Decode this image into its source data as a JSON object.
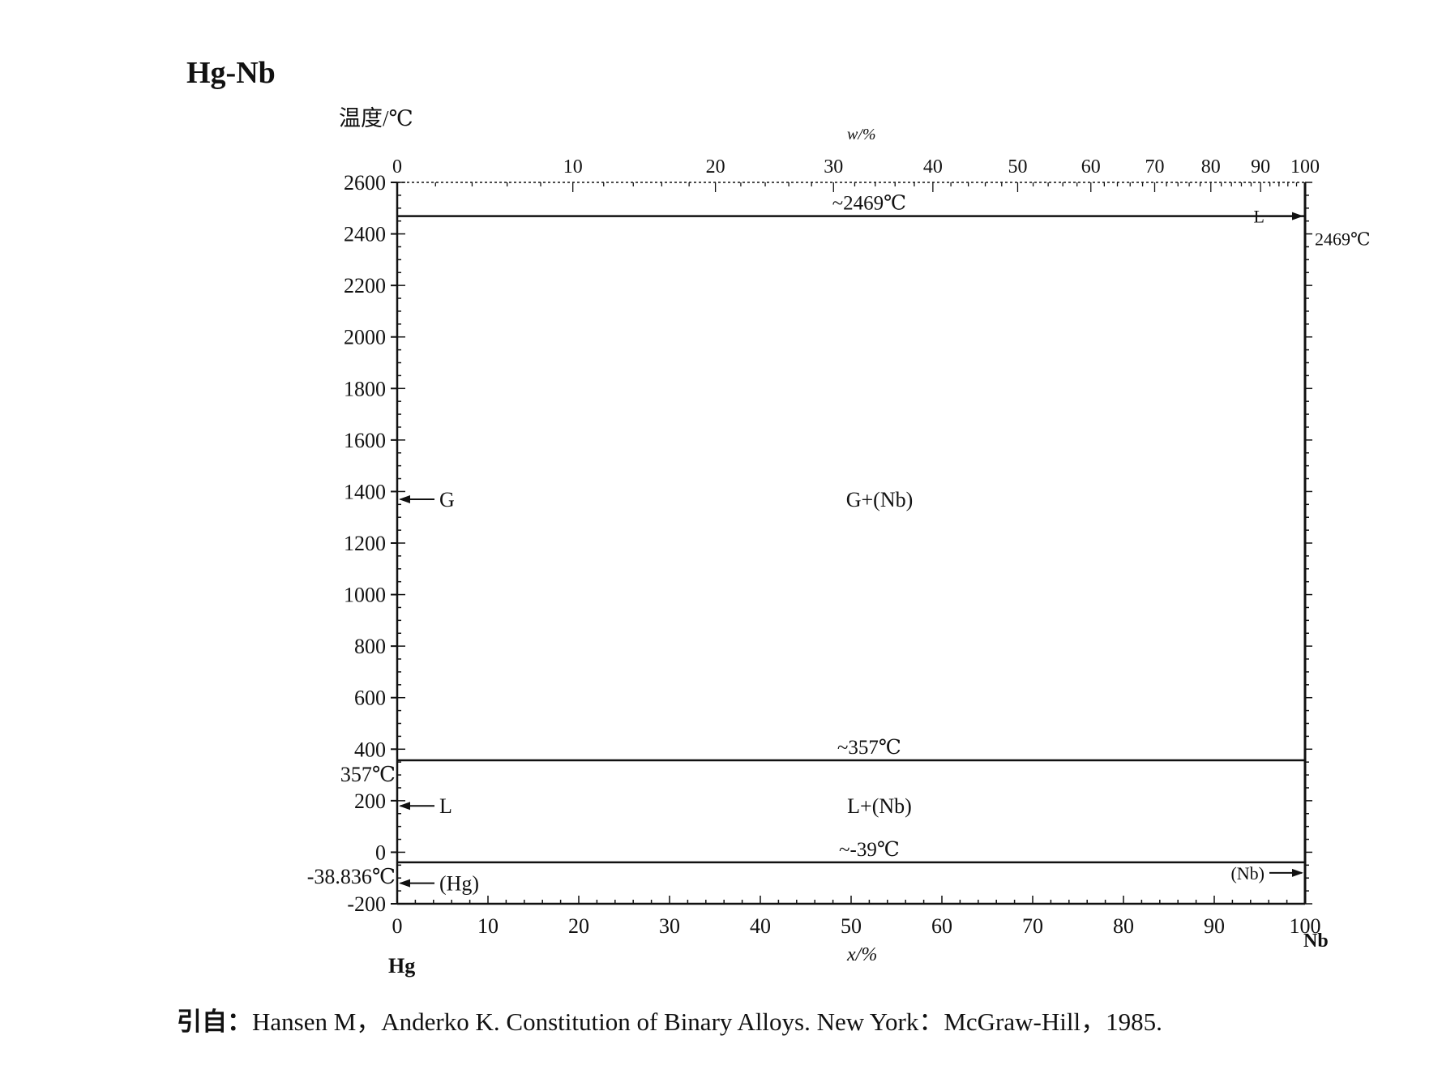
{
  "chart_data": {
    "type": "line",
    "title": "Hg-Nb",
    "ylabel": "温度/℃",
    "xlabel_bottom": "x/%",
    "xlabel_top": "w/%",
    "ylim": [
      -200,
      2600
    ],
    "xlim": [
      0,
      100
    ],
    "y_ticks": [
      "2600",
      "2400",
      "2200",
      "2000",
      "1800",
      "1600",
      "1400",
      "1200",
      "1000",
      "800",
      "600",
      "400",
      "200",
      "0",
      "-200"
    ],
    "y_tick_values": [
      2600,
      2400,
      2200,
      2000,
      1800,
      1600,
      1400,
      1200,
      1000,
      800,
      600,
      400,
      200,
      0,
      -200
    ],
    "x_bottom_ticks": [
      "0",
      "10",
      "20",
      "30",
      "40",
      "50",
      "60",
      "70",
      "80",
      "90",
      "100"
    ],
    "x_bottom_tick_values": [
      0,
      10,
      20,
      30,
      40,
      50,
      60,
      70,
      80,
      90,
      100
    ],
    "x_top_ticks": [
      "0",
      "10",
      "20",
      "30",
      "40",
      "50",
      "60",
      "70",
      "80",
      "90",
      "100"
    ],
    "x_top_tick_values": [
      0,
      10,
      20,
      30,
      40,
      50,
      60,
      70,
      80,
      90,
      100
    ],
    "left_element": "Hg",
    "right_element": "Nb",
    "isotherms": [
      {
        "label": "~2469℃",
        "y": 2469
      },
      {
        "label": "~357℃",
        "y": 357
      },
      {
        "label": "~-39℃",
        "y": -39
      }
    ],
    "phase_regions": [
      {
        "label": "G+(Nb)",
        "x": 50,
        "y": 1370
      },
      {
        "label": "L+(Nb)",
        "x": 50,
        "y": 180
      }
    ],
    "left_side_labels": [
      {
        "label": "357℃",
        "y": 357
      },
      {
        "label": "-38.836℃",
        "y": -38.836
      }
    ],
    "right_side_labels": [
      {
        "label": "2469℃",
        "y": 2469
      }
    ],
    "left_phase_arrows": [
      {
        "label": "G",
        "y": 1370
      },
      {
        "label": "L",
        "y": 180
      },
      {
        "label": "(Hg)",
        "y": -120
      }
    ],
    "right_phase_arrows": [
      {
        "label": "L",
        "y": 2469
      },
      {
        "label": "(Nb)",
        "y": -80
      }
    ],
    "grid": false
  },
  "citation": {
    "prefix": "引自：",
    "text": "Hansen M，Anderko K. Constitution of Binary Alloys. New York：McGraw-Hill，1985."
  }
}
